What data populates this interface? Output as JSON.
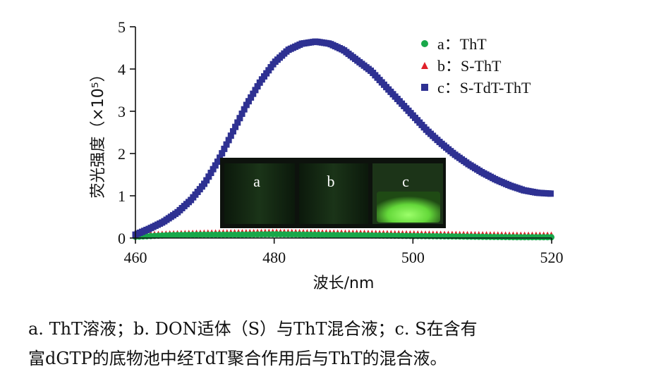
{
  "chart_data": {
    "type": "scatter",
    "xlabel": "波长/nm",
    "ylabel": "荧光强度（×10⁵）",
    "xlim": [
      460,
      520
    ],
    "ylim": [
      0,
      5
    ],
    "xticks": [
      "460",
      "480",
      "500",
      "520"
    ],
    "yticks": [
      "0",
      "1",
      "2",
      "3",
      "4",
      "5"
    ],
    "legend_position": "top-right",
    "series": [
      {
        "name": "a：ThT",
        "marker": "circle",
        "color": "#18a84a",
        "x": [
          460,
          465,
          470,
          475,
          480,
          485,
          490,
          495,
          500,
          505,
          510,
          515,
          520
        ],
        "y": [
          0.03,
          0.07,
          0.08,
          0.08,
          0.09,
          0.08,
          0.07,
          0.06,
          0.05,
          0.04,
          0.03,
          0.02,
          0.02
        ]
      },
      {
        "name": "b：S-ThT",
        "marker": "triangle",
        "color": "#e0202a",
        "x": [
          460,
          465,
          470,
          475,
          480,
          485,
          490,
          495,
          500,
          505,
          510,
          515,
          520
        ],
        "y": [
          0.08,
          0.11,
          0.13,
          0.14,
          0.15,
          0.14,
          0.13,
          0.12,
          0.11,
          0.1,
          0.09,
          0.08,
          0.08
        ]
      },
      {
        "name": "c：S-TdT-ThT",
        "marker": "square",
        "color": "#2e3192",
        "x": [
          460,
          462,
          464,
          466,
          468,
          470,
          472,
          474,
          476,
          478,
          480,
          482,
          484,
          486,
          488,
          490,
          492,
          494,
          496,
          498,
          500,
          502,
          504,
          506,
          508,
          510,
          512,
          514,
          516,
          518,
          520
        ],
        "y": [
          0.08,
          0.22,
          0.38,
          0.6,
          0.9,
          1.3,
          1.85,
          2.5,
          3.15,
          3.7,
          4.15,
          4.45,
          4.6,
          4.65,
          4.6,
          4.45,
          4.2,
          3.95,
          3.6,
          3.25,
          2.9,
          2.55,
          2.25,
          1.98,
          1.75,
          1.55,
          1.38,
          1.24,
          1.13,
          1.07,
          1.05
        ]
      }
    ],
    "inset_labels": [
      "a",
      "b",
      "c"
    ]
  },
  "caption": {
    "line1": "a. ThT溶液；b. DON适体（S）与ThT混合液；c. S在含有",
    "line2": "富dGTP的底物池中经TdT聚合作用后与ThT的混合液。"
  }
}
